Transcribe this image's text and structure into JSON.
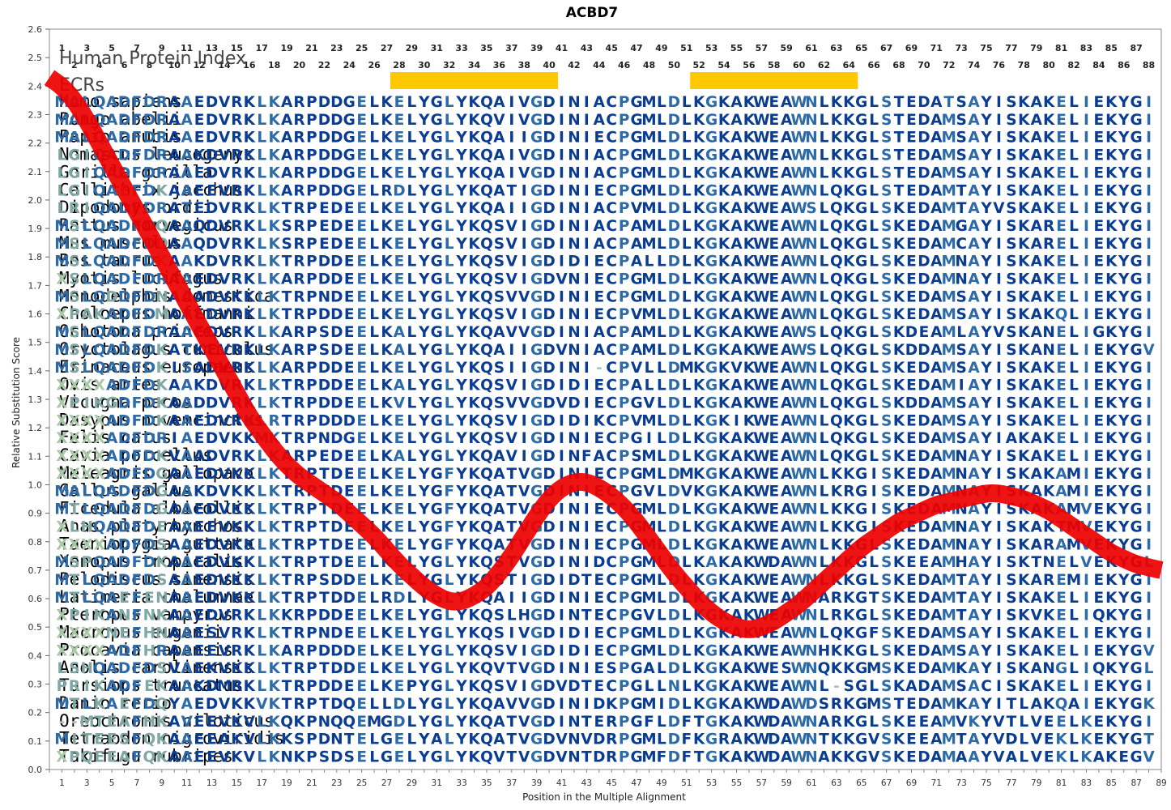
{
  "chart_data": {
    "type": "line",
    "title": "ACBD7",
    "xlabel": "Position in the Multiple Alignment",
    "ylabel": "Relative Substitution Score",
    "ylim": [
      0.0,
      2.6
    ],
    "yticks": [
      0.0,
      0.1,
      0.2,
      0.3,
      0.4,
      0.5,
      0.6,
      0.7,
      0.8,
      0.9,
      1.0,
      1.1,
      1.2,
      1.3,
      1.4,
      1.5,
      1.6,
      1.7,
      1.8,
      1.9,
      2.0,
      2.1,
      2.2,
      2.3,
      2.4,
      2.5,
      2.6
    ],
    "ytick_labels": [
      "0.0",
      "0.1",
      "0.2",
      "0.3",
      "0.4",
      "0.5",
      "0.6",
      "0.7",
      "0.8",
      "0.9",
      "1.0",
      "1.1",
      "1.2",
      "1.3",
      "1.4",
      "1.5",
      "1.6",
      "1.7",
      "1.8",
      "1.9",
      "2.0",
      "2.1",
      "2.2",
      "2.3",
      "2.4",
      "2.5",
      "2.6"
    ],
    "xlim": [
      0,
      89
    ],
    "xticks": [
      1,
      3,
      5,
      7,
      9,
      11,
      13,
      15,
      17,
      19,
      21,
      23,
      25,
      27,
      29,
      31,
      33,
      35,
      37,
      39,
      41,
      43,
      45,
      47,
      49,
      51,
      53,
      55,
      57,
      59,
      61,
      63,
      65,
      67,
      69,
      71,
      73,
      75,
      77,
      79,
      81,
      83,
      85,
      87,
      89
    ],
    "top_odd_positions": [
      "1",
      "3",
      "5",
      "7",
      "9",
      "11",
      "13",
      "15",
      "17",
      "19",
      "21",
      "23",
      "25",
      "27",
      "29",
      "31",
      "33",
      "35",
      "37",
      "39",
      "41",
      "43",
      "45",
      "47",
      "49",
      "51",
      "53",
      "55",
      "57",
      "59",
      "61",
      "63",
      "65",
      "67",
      "69",
      "71",
      "73",
      "75",
      "77",
      "79",
      "81",
      "83",
      "85",
      "87"
    ],
    "top_even_positions": [
      "2",
      "4",
      "6",
      "8",
      "10",
      "12",
      "14",
      "16",
      "18",
      "20",
      "22",
      "24",
      "26",
      "28",
      "30",
      "32",
      "34",
      "36",
      "38",
      "40",
      "42",
      "44",
      "46",
      "48",
      "50",
      "52",
      "54",
      "56",
      "58",
      "60",
      "62",
      "64",
      "66",
      "68",
      "70",
      "72",
      "74",
      "76",
      "78",
      "80",
      "82",
      "84",
      "86",
      "88"
    ],
    "series": [
      {
        "color": "#ee0000",
        "x": [
          0,
          1,
          2,
          3,
          4,
          5,
          6,
          7,
          8,
          9,
          10,
          11,
          12,
          13,
          14,
          15,
          16,
          17,
          18,
          19,
          20,
          21,
          22,
          23,
          24,
          25,
          26,
          27,
          28,
          29,
          30,
          31,
          32,
          33,
          34,
          35,
          36,
          37,
          38,
          39,
          40,
          41,
          42,
          43,
          44,
          45,
          46,
          47,
          48,
          49,
          50,
          51,
          52,
          53,
          54,
          55,
          56,
          57,
          58,
          59,
          60,
          61,
          62,
          63,
          64,
          65,
          66,
          67,
          68,
          69,
          70,
          71,
          72,
          73,
          74,
          75,
          76,
          77,
          78,
          79,
          80,
          81,
          82,
          83,
          84,
          85,
          86,
          87,
          88,
          89
        ],
        "y": [
          2.43,
          2.4,
          2.35,
          2.28,
          2.2,
          2.12,
          2.04,
          1.96,
          1.88,
          1.8,
          1.72,
          1.64,
          1.56,
          1.48,
          1.4,
          1.32,
          1.24,
          1.18,
          1.12,
          1.07,
          1.03,
          1.0,
          0.97,
          0.94,
          0.9,
          0.86,
          0.82,
          0.77,
          0.72,
          0.68,
          0.64,
          0.61,
          0.59,
          0.59,
          0.61,
          0.64,
          0.69,
          0.75,
          0.82,
          0.89,
          0.95,
          0.99,
          1.01,
          1.01,
          0.99,
          0.96,
          0.92,
          0.87,
          0.81,
          0.75,
          0.69,
          0.64,
          0.59,
          0.55,
          0.52,
          0.5,
          0.49,
          0.5,
          0.52,
          0.55,
          0.58,
          0.62,
          0.66,
          0.7,
          0.74,
          0.78,
          0.81,
          0.84,
          0.87,
          0.89,
          0.91,
          0.93,
          0.94,
          0.95,
          0.96,
          0.97,
          0.97,
          0.96,
          0.95,
          0.93,
          0.91,
          0.88,
          0.85,
          0.82,
          0.79,
          0.76,
          0.74,
          0.72,
          0.71,
          0.7
        ]
      }
    ]
  },
  "headings": {
    "human_protein_index": "Human Protein Index",
    "ecrs": "ECRs"
  },
  "ecr_regions": [
    {
      "start": 28,
      "end": 40,
      "color": "#ffc800"
    },
    {
      "start": 52,
      "end": 64,
      "color": "#ffc800"
    }
  ],
  "alignment": {
    "species": [
      "Homo sapiens",
      "Pongo abelii",
      "Papio anubis",
      "Nomascus leucogenys",
      "Gorilla gorilla",
      "Callithrix jacchus",
      "Dipodomys ordii",
      "Rattus norvegicus",
      "Mus musculus",
      "Bos taurus",
      "Myotis lucifugus",
      "Monodelphis domestica",
      "Choloepus hoffmanni",
      "Ochotona princeps",
      "Oryctolagus cuniculus",
      "Erinaceus europaeus",
      "Ovis aries",
      "Vicugna pacos",
      "Dasypus novemcinctus",
      "Felis catus",
      "Cavia porcellus",
      "Meleagris gallopavo",
      "Gallus gallus",
      "Ficedula albicollis",
      "Anas platyrhynchos",
      "Taeniopygia guttata",
      "Xenopus tropicalis",
      "Pelodiscus sinensis",
      "Latimeria chalumnae",
      "Pteropus vampyrus",
      "Macropus eugenii",
      "Procavia capensis",
      "Anolis carolinensis",
      "Tursiops truncatus",
      "Danio rerio",
      "Oreochromis niloticus",
      "Tetraodon nigroviridis",
      "Takifugu rubripes"
    ],
    "sequences": [
      "MALQADFDRAAEDVRKLKARPDDGELKELYGLYKQAIVGDINIACPGMLDLKGKAKWEAWNLKKGLSTEDATSAYISKAKELIEKYGI",
      "MALQADFDRAAEDVRKLKARPDDGELKELYGLYKQVIVGDINIACPGMLDLKGKAKWEAWNLKKGLSTEDAMSAYISKAKELIEKYGI",
      "MALQADFDRAAEDVRKLKARPDDGELKELYGLYKQAIIGDINIECPGMLDLKGKAKWEAWNLKKGLSTEDAMSAYISKAKELIEKYGI",
      "LGIQADFDRAAKDVRKLKARPDDGELKELYGLYKQAIVGDINIACPGMLDLKGKAKWEAWNLKKGLSTEDAMSAYISKAKELIEKYGI",
      "LGIQADFDRAAEDVRKLKARPDDGELKELYGLYKQAIVGDINIACPGMLDLKGKAKWEAWNLKKGLSTEDAMSAYISKAKELIEKYGI",
      "LGIQAEFDKAAEEVRKLKARPDDGELRDLYGLYKQATIGDINIECPGMLDLKGKAKWEAWNLQKGLSTEDAMTAYISKAKELIEKYGI",
      "LRIQADFDRATEDVRKLKTRPEDEELKELYGLYKQAIIGDINIACPVMLDLKGKAKWEAWSLQKGLSKEDAMTAYVSKAKELIEKYGI",
      "MSLQADFDQAAQDVRKLKSRPEDEELKELYGLYKQSVIGDINIACPAMLDLKGKAKWEAWNLQKGLSKEDAMGAYISKARELIEKYGI",
      "MSLQADFDQAAQDVRKLKSRPEDEELKELYGLYKQSVIGDINIACPAMLDLKGKAKWEAWNLQKGLSKEDAMCAYISKARELIEKYGI",
      "MSLQADFDKAAKDVRKLKTRPDDEELKELYGLYKQSVIGDIDIECPALLDLKGKAKWEAWNLQKGLSKEDAMNAYISKAKELIEKYGI",
      "XSLQADFDRAAEDVRKLKARPDDEELKELYGLYKQSVIGDVNIECPGMLDLKGKAKWEAWNLQKGLSKEDAMNAYISKAKELIEKYGI",
      "MSLQDDFDNAAADVKKLKTRPNDEELKELYGLYKQSVVGDINIECPGMLDLKGKAKWEAWNLQKGLSKEDAMSAYISKAKELIEKYGI",
      "XPAKADFDMAAEDVRKLKTRPDDEELKELYGLYKQSVIGDINIECPVMLDLKGKAKWEAWNLQKGLSKEDAMSAYISKAKQLIEKYGI",
      "MSLQADFDRAAEDVRKLKARPSDEELKALYGLYKQAVVGDINIACPAMLDLKGKAKWEAWSLQKGLSKDEAMLAYVSKANELIGKYGI",
      "MSLQADFDKATKEVRKLKARPSDEELKALYGLYKQAIIGDVNIACPAMLDLKGKAKWEAWSLQKGLSKDDAMSAYISKANELIEKYGV",
      "MSLQADFDKISADVRKLKARPDDEELKELYGLYKQSIIGDINI-CPVLLDMKGKVKWEAWNLQKGLSKEDAMSAYISKAKELIEKYGI",
      "XXXXADFDKAAKDVRKLKTRPDDEELKALYGLYKQSVIGDIDIECPALLDLKGKAKWEAWNLQKGLSKEDAMIAYISKAKELIEKYGI",
      "XPIKGDFDKAADDVRKLKTRPDDEELKVLYGLYKQSVVGDVDIECPGVLDLKGKAKWEAWNLQKGLSKDDAMSAYISKAKELIEKYGI",
      "XXXXADFDKAAEDVRKLRTRPDDDELKELYGLYKQSVIGDIDIKCPVMLDLKGKIKWEAWNLQKGLSKEDAMSAYISKAKELIEKYGI",
      "XXXXADFDRIAEDVKKMKTRPNDGELKELYGLYKQSVIGDINIECPGILDLKGKAKWEAWNLQKGLSKEDAMSAYIAKAKELIEKYGI",
      "XXXXADFDKVAADVRKLKARPEDEELKALYGLYKQAVIGDINFACPSMLDLKGKAKWEAWNLQKGLSKEDAMNAYISKAKELIEKYGI",
      "XXXXADFDGAAEDVKKLKTRPTDEELKELYGFYKQATVGDINIECPGMLDMKGKAKWEAWNLKKGISKEDAMNAYISKAKAMIEKYGI",
      "MALQADFDGAAKDVKKLKTRPTDEELKELYGFYKQATVGDINIECPGVLDVKGKAKWEAWNLKRGISKEDAMNAYISKAKAMIEKYGI",
      "MTLQADFDGAAEDVKKLKTRPTDEELKELYGFYKQATVGDINIECPGMLDLKGKAKWEAWNLKKGISKEDAMNAYISKAKAMVEKYGI",
      "XLHQADFDEAAEEVKKLKTRPTDEELKELYGFYKQATVGDINIECPGMLDLKGKAKWEAWNLKKGISKEDAMNAYISKAKTMVEKYGI",
      "XXXXADFDSAAEDVKKLKTRPTDEELKELYGFYKQATVGDINIECPGMLDLKGKAKWEAWNLKKGLSKEDAMNAYISKARAMVEKYGI",
      "MSPQADFDKAAEDVKKLKTRPTDEELKELYGLYKQSTVGDINIDCPGMLDLKAKAKWDAWNLKKGLSKEEAMHAYISKTNELVEKYGL",
      "MTLQADFDSAAEDVKKLKTRPSDDELKELYGLYKQSTIGDIDTECPGMLDLKGKAKWEAWNLKKGLSKEDAMTAYISKAREMIEKYGI",
      "MTLQAEFENAAEDVKKLKTRPTDDELRDLYGLYKQAIIGDINIECPGMLDLKGKAKWEAWNARKGTSKEDAMTAYISKAKELIEKYGI",
      "XPIKANFNKAAEDVRKLKKRPDDEELKELYGLYKQSLHGDINTECPGVLDLKGKAKWEAWNLRKGLSKEDAMTAYISKVKELIQKYGI",
      "XXXXNEFHNAAESVRKLKTRPNDEELKELYGLYKQSIVGDIDIECPGMLDLKGKAKWEAWNLQKGFSKEDAMSAYISKAKELIEKYGI",
      "XXXXADFHRAAEEVRKLKARPDDDELKELYGLYKQSVIGDIDIECPGMLDLKGKAKWEAWNHKKGLSKEDAMSAYISKAKELIEKYGV",
      "LSHQADFDSVAEKVKKLKTRPTDDELKELYGLYKQVTVGDINIESPGALDLKGKAKWESWNQKKGMSKEDAMKAYISKANGLIQKYGL",
      "PRIKADFEKAAKDMRKLKTRPDDEELKEPYGLYKQSVIGDVDTECPGLLNLKGKAKWEAWNL-SGLSKADAMSACISKAKELIEKYGI",
      "MTLKAEFDQYAEDVKKVKTRPTDQELLDLYGLYKQAVVGDINIDKPGMIDLKGKAKWDAWDSRKGMSTEDAMKAYITLAKQAIEKYGK",
      "--MTEAFHKAVEEVKVLKQKPNQQEMGDLYGLYKQATVGDINTERPGFLDFTGKAKWDAWNARKGLSKEEAMVKYVTLVEELKEKYGI",
      "MITEESFQKAAEEAKVLKKSPDNTELGELYALYKQATVGDVNVDRPGMLDFKGRAKWDAWNTKKGVSKEEAMTAYVDLVEKLKEKYGT",
      "XPQEEAFQKAAEEVKVLKNKPSDSELGELYGLYKQVTVGDVNTDRPGMFDFTGKAKWDAWNAKKGVSKEDAMAAYVALVEKLKAKEGV"
    ]
  },
  "colors": {
    "residue_dark": "#0a3d91",
    "residue_mid": "#2d6aa8",
    "residue_light": "#7fa8a4",
    "residue_faint": "#a9c8a8",
    "curve": "#ee0000",
    "ecr_bar": "#ffc800"
  }
}
